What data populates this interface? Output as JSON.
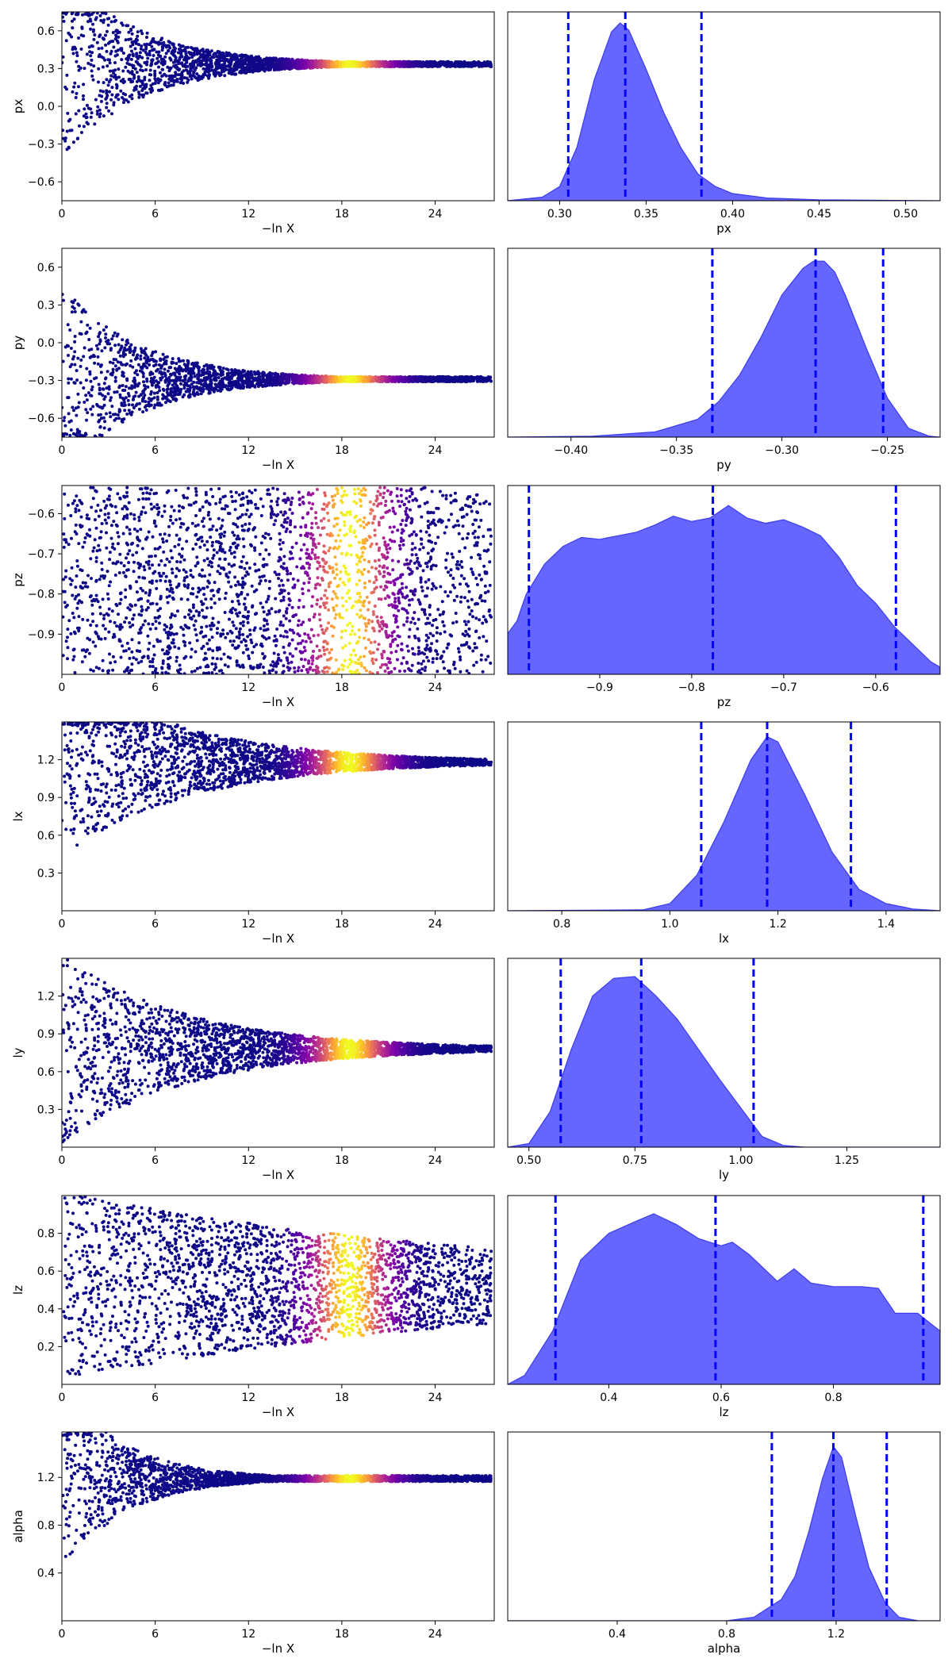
{
  "chart_data": {
    "type": "scatter",
    "description_kind": "nested sampling trace plot",
    "trace": {
      "xlabel": "−ln X",
      "xlim": [
        0,
        27.8
      ],
      "xticks": [
        "0",
        "6",
        "12",
        "18",
        "24"
      ],
      "colormap": "plasma",
      "color_peak_x": 18.5
    },
    "params": [
      {
        "name": "px",
        "trace_ylabel": "px",
        "trace_ylim": [
          -0.75,
          0.75
        ],
        "trace_yticks": [
          "-0.6",
          "-0.3",
          "0.0",
          "0.3",
          "0.6"
        ],
        "converge_value": 0.335,
        "start_spread": [
          -0.75,
          0.75
        ],
        "spread_decay": 5.0,
        "end_spread": 0.02,
        "hist_xlabel": "px",
        "hist_xlim": [
          0.27,
          0.52
        ],
        "hist_xticks": [
          "0.30",
          "0.35",
          "0.40",
          "0.45",
          "0.50"
        ],
        "quantiles": [
          0.305,
          0.338,
          0.382
        ],
        "density": [
          [
            0.27,
            0.0
          ],
          [
            0.29,
            0.02
          ],
          [
            0.3,
            0.08
          ],
          [
            0.31,
            0.3
          ],
          [
            0.32,
            0.68
          ],
          [
            0.33,
            0.95
          ],
          [
            0.335,
            1.0
          ],
          [
            0.34,
            0.96
          ],
          [
            0.35,
            0.74
          ],
          [
            0.36,
            0.5
          ],
          [
            0.37,
            0.3
          ],
          [
            0.38,
            0.15
          ],
          [
            0.39,
            0.08
          ],
          [
            0.4,
            0.04
          ],
          [
            0.42,
            0.015
          ],
          [
            0.45,
            0.005
          ],
          [
            0.52,
            0.0
          ]
        ]
      },
      {
        "name": "py",
        "trace_ylabel": "py",
        "trace_ylim": [
          -0.75,
          0.75
        ],
        "trace_yticks": [
          "-0.6",
          "-0.3",
          "0.0",
          "0.3",
          "0.6"
        ],
        "converge_value": -0.29,
        "start_spread": [
          -0.75,
          0.75
        ],
        "spread_decay": 5.0,
        "end_spread": 0.02,
        "hist_xlabel": "py",
        "hist_xlim": [
          -0.43,
          -0.225
        ],
        "hist_xticks": [
          "-0.40",
          "-0.35",
          "-0.30",
          "-0.25"
        ],
        "quantiles": [
          -0.333,
          -0.284,
          -0.252
        ],
        "density": [
          [
            -0.43,
            0.0
          ],
          [
            -0.39,
            0.005
          ],
          [
            -0.36,
            0.03
          ],
          [
            -0.34,
            0.1
          ],
          [
            -0.33,
            0.2
          ],
          [
            -0.32,
            0.35
          ],
          [
            -0.31,
            0.56
          ],
          [
            -0.3,
            0.8
          ],
          [
            -0.29,
            0.95
          ],
          [
            -0.285,
            0.99
          ],
          [
            -0.28,
            0.99
          ],
          [
            -0.275,
            0.93
          ],
          [
            -0.27,
            0.8
          ],
          [
            -0.26,
            0.5
          ],
          [
            -0.25,
            0.22
          ],
          [
            -0.24,
            0.05
          ],
          [
            -0.23,
            0.005
          ],
          [
            -0.225,
            0.0
          ]
        ]
      },
      {
        "name": "pz",
        "trace_ylabel": "pz",
        "trace_ylim": [
          -1.0,
          -0.53
        ],
        "trace_yticks": [
          "-0.6",
          "-0.7",
          "-0.8",
          "-0.9"
        ],
        "converge_value": -0.77,
        "start_spread": [
          -1.0,
          -0.53
        ],
        "spread_decay": 1000,
        "end_spread": 0.235,
        "hist_xlabel": "pz",
        "hist_xlim": [
          -1.0,
          -0.53
        ],
        "hist_xticks": [
          "-0.9",
          "-0.8",
          "-0.7",
          "-0.6"
        ],
        "quantiles": [
          -0.977,
          -0.777,
          -0.578
        ],
        "density": [
          [
            -1.0,
            0.23
          ],
          [
            -0.99,
            0.3
          ],
          [
            -0.98,
            0.45
          ],
          [
            -0.96,
            0.62
          ],
          [
            -0.94,
            0.72
          ],
          [
            -0.92,
            0.77
          ],
          [
            -0.9,
            0.76
          ],
          [
            -0.88,
            0.78
          ],
          [
            -0.86,
            0.8
          ],
          [
            -0.84,
            0.84
          ],
          [
            -0.82,
            0.89
          ],
          [
            -0.8,
            0.86
          ],
          [
            -0.78,
            0.88
          ],
          [
            -0.76,
            0.95
          ],
          [
            -0.74,
            0.88
          ],
          [
            -0.72,
            0.85
          ],
          [
            -0.7,
            0.87
          ],
          [
            -0.68,
            0.83
          ],
          [
            -0.66,
            0.78
          ],
          [
            -0.64,
            0.66
          ],
          [
            -0.62,
            0.5
          ],
          [
            -0.6,
            0.4
          ],
          [
            -0.58,
            0.27
          ],
          [
            -0.56,
            0.17
          ],
          [
            -0.54,
            0.07
          ],
          [
            -0.53,
            0.04
          ]
        ]
      },
      {
        "name": "lx",
        "trace_ylabel": "lx",
        "trace_ylim": [
          0.0,
          1.5
        ],
        "trace_yticks": [
          "0.3",
          "0.6",
          "0.9",
          "1.2"
        ],
        "converge_value": 1.18,
        "start_spread": [
          0.0,
          1.5
        ],
        "spread_decay": 8.0,
        "end_spread": 0.02,
        "hist_xlabel": "lx",
        "hist_xlim": [
          0.7,
          1.5
        ],
        "hist_xticks": [
          "0.8",
          "1.0",
          "1.2",
          "1.4"
        ],
        "quantiles": [
          1.058,
          1.18,
          1.335
        ],
        "density": [
          [
            0.7,
            0.0
          ],
          [
            0.95,
            0.005
          ],
          [
            1.0,
            0.04
          ],
          [
            1.05,
            0.2
          ],
          [
            1.1,
            0.5
          ],
          [
            1.15,
            0.85
          ],
          [
            1.18,
            0.98
          ],
          [
            1.2,
            0.95
          ],
          [
            1.25,
            0.65
          ],
          [
            1.3,
            0.33
          ],
          [
            1.35,
            0.12
          ],
          [
            1.4,
            0.04
          ],
          [
            1.45,
            0.01
          ],
          [
            1.5,
            0.0
          ]
        ]
      },
      {
        "name": "ly",
        "trace_ylabel": "ly",
        "trace_ylim": [
          0.0,
          1.5
        ],
        "trace_yticks": [
          "0.3",
          "0.6",
          "0.9",
          "1.2"
        ],
        "converge_value": 0.78,
        "start_spread": [
          0.0,
          1.5
        ],
        "spread_decay": 8.0,
        "end_spread": 0.02,
        "hist_xlabel": "ly",
        "hist_xlim": [
          0.45,
          1.47
        ],
        "hist_xticks": [
          "0.50",
          "0.75",
          "1.00",
          "1.25"
        ],
        "quantiles": [
          0.575,
          0.765,
          1.03
        ],
        "density": [
          [
            0.45,
            0.0
          ],
          [
            0.5,
            0.02
          ],
          [
            0.55,
            0.2
          ],
          [
            0.6,
            0.55
          ],
          [
            0.65,
            0.85
          ],
          [
            0.7,
            0.95
          ],
          [
            0.75,
            0.96
          ],
          [
            0.8,
            0.85
          ],
          [
            0.85,
            0.72
          ],
          [
            0.9,
            0.55
          ],
          [
            0.95,
            0.38
          ],
          [
            1.0,
            0.22
          ],
          [
            1.05,
            0.06
          ],
          [
            1.1,
            0.01
          ],
          [
            1.15,
            0.0
          ],
          [
            1.47,
            0.0
          ]
        ]
      },
      {
        "name": "lz",
        "trace_ylabel": "lz",
        "trace_ylim": [
          0.0,
          1.0
        ],
        "trace_yticks": [
          "0.2",
          "0.4",
          "0.6",
          "0.8"
        ],
        "converge_value": 0.52,
        "start_spread": [
          0.0,
          1.0
        ],
        "spread_decay": 30,
        "end_spread": 0.18,
        "hist_xlabel": "lz",
        "hist_xlim": [
          0.22,
          0.99
        ],
        "hist_xticks": [
          "0.4",
          "0.6",
          "0.8"
        ],
        "quantiles": [
          0.305,
          0.59,
          0.96
        ],
        "density": [
          [
            0.22,
            0.0
          ],
          [
            0.25,
            0.05
          ],
          [
            0.3,
            0.3
          ],
          [
            0.35,
            0.7
          ],
          [
            0.4,
            0.85
          ],
          [
            0.45,
            0.92
          ],
          [
            0.48,
            0.96
          ],
          [
            0.52,
            0.9
          ],
          [
            0.56,
            0.82
          ],
          [
            0.6,
            0.78
          ],
          [
            0.62,
            0.8
          ],
          [
            0.65,
            0.73
          ],
          [
            0.7,
            0.58
          ],
          [
            0.73,
            0.65
          ],
          [
            0.76,
            0.57
          ],
          [
            0.8,
            0.55
          ],
          [
            0.85,
            0.55
          ],
          [
            0.88,
            0.54
          ],
          [
            0.91,
            0.4
          ],
          [
            0.95,
            0.4
          ],
          [
            0.97,
            0.35
          ],
          [
            0.99,
            0.3
          ]
        ]
      },
      {
        "name": "alpha",
        "trace_ylabel": "alpha",
        "trace_ylim": [
          0.0,
          1.58
        ],
        "trace_yticks": [
          "0.4",
          "0.8",
          "1.2"
        ],
        "converge_value": 1.19,
        "start_spread": [
          0.0,
          1.58
        ],
        "spread_decay": 4.0,
        "end_spread": 0.025,
        "hist_xlabel": "alpha",
        "hist_xlim": [
          0.0,
          1.58
        ],
        "hist_xticks": [
          "0.4",
          "0.8",
          "1.2"
        ],
        "quantiles": [
          0.965,
          1.19,
          1.385
        ],
        "density": [
          [
            0.0,
            0.0
          ],
          [
            0.8,
            0.0
          ],
          [
            0.9,
            0.02
          ],
          [
            1.0,
            0.12
          ],
          [
            1.05,
            0.25
          ],
          [
            1.1,
            0.5
          ],
          [
            1.15,
            0.8
          ],
          [
            1.19,
            0.98
          ],
          [
            1.22,
            0.92
          ],
          [
            1.27,
            0.6
          ],
          [
            1.32,
            0.3
          ],
          [
            1.38,
            0.1
          ],
          [
            1.43,
            0.02
          ],
          [
            1.5,
            0.0
          ],
          [
            1.58,
            0.0
          ]
        ]
      }
    ],
    "colors": {
      "hist_fill": "#6666ff",
      "hist_edge": "#3b3bf0",
      "quantile_line": "#0000ff",
      "axes": "#000000"
    }
  }
}
